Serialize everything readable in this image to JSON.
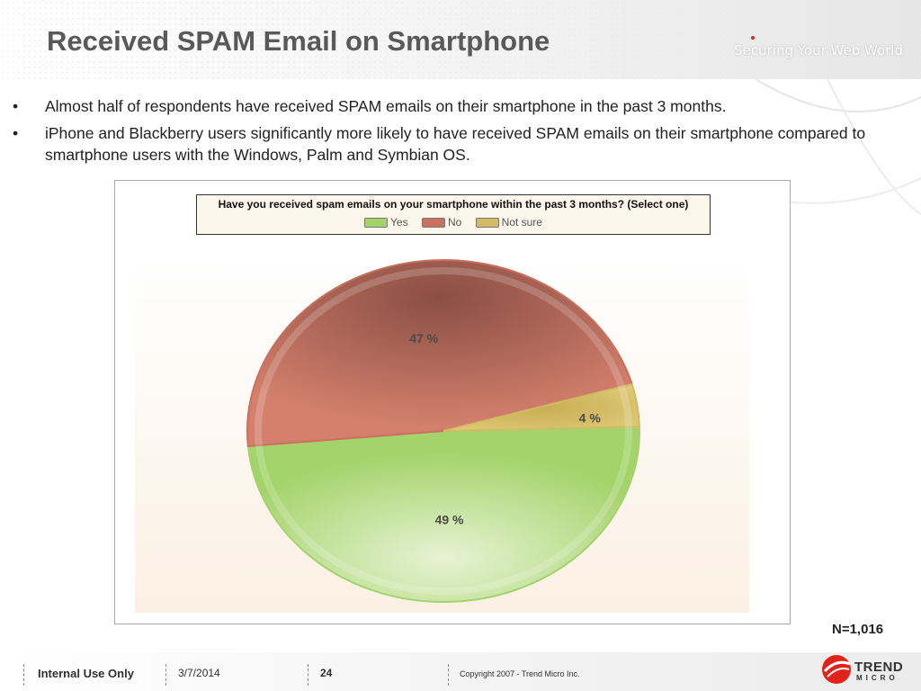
{
  "header": {
    "title": "Received SPAM Email on Smartphone",
    "tagline": "Securing Your Web World"
  },
  "bullets": [
    "Almost half of respondents have received SPAM emails on their smartphone in the past 3 months.",
    "iPhone and Blackberry users significantly more likely to have received SPAM emails on their smartphone compared to smartphone users with the Windows, Palm and Symbian OS."
  ],
  "bullet_glyph": "•",
  "sample_size": "N=1,016",
  "colors": {
    "yes": "#a4d36b",
    "no": "#c9705f",
    "not_sure": "#d2bb63",
    "title": "#595959",
    "brand_red": "#e2231a"
  },
  "chart_data": {
    "type": "pie",
    "title": "Have you received spam emails on your smartphone within the past 3 months? (Select one)",
    "legend_position": "top",
    "categories": [
      "Yes",
      "No",
      "Not sure"
    ],
    "values": [
      49,
      47,
      4
    ],
    "data_labels": [
      "49 %",
      "47 %",
      "4 %"
    ]
  },
  "footer": {
    "classification": "Internal Use Only",
    "date": "3/7/2014",
    "page_number": "24",
    "copyright": "Copyright 2007 - Trend Micro Inc."
  },
  "logo": {
    "name": "trend-micro-logo",
    "word1": "TREND",
    "word2": "MICRO"
  }
}
